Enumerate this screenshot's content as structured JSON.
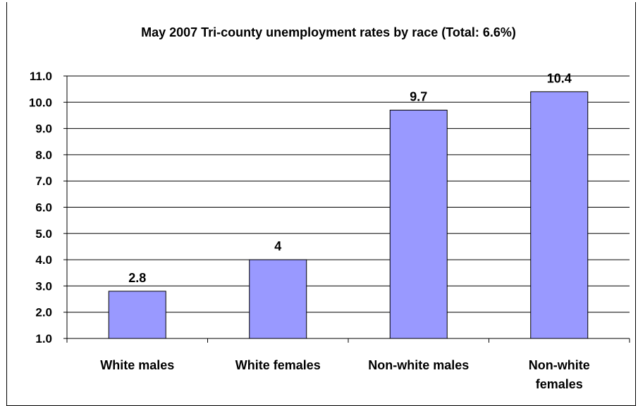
{
  "chart_data": {
    "type": "bar",
    "title": "May 2007 Tri-county unemployment rates by race (Total: 6.6%)",
    "categories": [
      "White males",
      "White females",
      "Non-white males",
      "Non-white females"
    ],
    "category_lines": [
      [
        "White males"
      ],
      [
        "White females"
      ],
      [
        "Non-white males"
      ],
      [
        "Non-white",
        "females"
      ]
    ],
    "values": [
      2.8,
      4,
      9.7,
      10.4
    ],
    "data_labels": [
      "2.8",
      "4",
      "9.7",
      "10.4"
    ],
    "ylim": [
      1.0,
      11.0
    ],
    "yticks": [
      "1.0",
      "2.0",
      "3.0",
      "4.0",
      "5.0",
      "6.0",
      "7.0",
      "8.0",
      "9.0",
      "10.0",
      "11.0"
    ],
    "xlabel": "",
    "ylabel": "",
    "grid": true,
    "legend": "none",
    "colors": {
      "bar_fill": "#9999ff",
      "bar_stroke": "#000000",
      "gridline": "#000000",
      "background": "#ffffff"
    }
  }
}
